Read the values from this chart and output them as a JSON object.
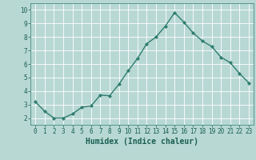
{
  "x": [
    0,
    1,
    2,
    3,
    4,
    5,
    6,
    7,
    8,
    9,
    10,
    11,
    12,
    13,
    14,
    15,
    16,
    17,
    18,
    19,
    20,
    21,
    22,
    23
  ],
  "y": [
    3.2,
    2.5,
    2.0,
    2.0,
    2.3,
    2.8,
    2.9,
    3.7,
    3.65,
    4.5,
    5.5,
    6.4,
    7.5,
    8.0,
    8.8,
    9.8,
    9.1,
    8.3,
    7.7,
    7.3,
    6.5,
    6.1,
    5.3,
    4.6
  ],
  "line_color": "#2e7d6e",
  "marker": "D",
  "marker_size": 2.0,
  "line_width": 1.0,
  "xlabel": "Humidex (Indice chaleur)",
  "xlabel_fontsize": 7,
  "xlabel_color": "#1a5f52",
  "xlim": [
    -0.5,
    23.5
  ],
  "ylim": [
    1.5,
    10.5
  ],
  "yticks": [
    2,
    3,
    4,
    5,
    6,
    7,
    8,
    9,
    10
  ],
  "xticks": [
    0,
    1,
    2,
    3,
    4,
    5,
    6,
    7,
    8,
    9,
    10,
    11,
    12,
    13,
    14,
    15,
    16,
    17,
    18,
    19,
    20,
    21,
    22,
    23
  ],
  "grid_color": "#ffffff",
  "background_color": "#b8d8d4",
  "tick_fontsize": 5.5,
  "tick_color": "#1a5f52",
  "spine_color": "#2e7d6e"
}
